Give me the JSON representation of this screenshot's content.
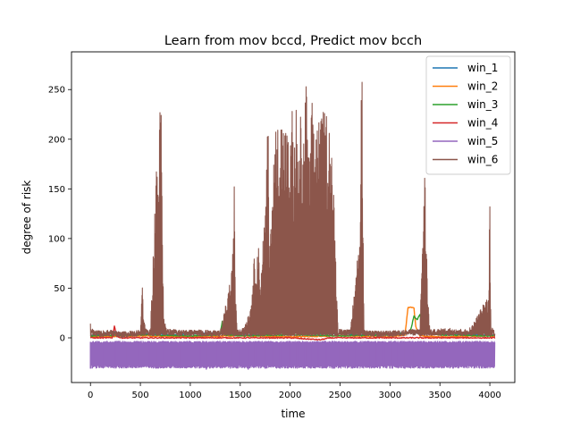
{
  "chart_data": {
    "type": "line",
    "title": "Learn from mov bccd, Predict mov bcch",
    "xlabel": "time",
    "ylabel": "degree of risk",
    "xlim": [
      -190,
      4250
    ],
    "ylim": [
      -45,
      288
    ],
    "xticks": [
      0,
      500,
      1000,
      1500,
      2000,
      2500,
      3000,
      3500,
      4000
    ],
    "yticks": [
      0,
      50,
      100,
      150,
      200,
      250
    ],
    "grid": false,
    "legend_position": "top-right",
    "series": [
      {
        "name": "win_1",
        "color": "#1f77b4",
        "x": [
          0,
          250,
          300,
          500,
          800,
          1000,
          1200,
          1400,
          1600,
          2000,
          2500,
          2700,
          3000,
          3200,
          3400,
          3600,
          3800,
          4000,
          4050
        ],
        "y": [
          2,
          6,
          3,
          4,
          3,
          4,
          5,
          4,
          3,
          5,
          4,
          3,
          4,
          5,
          4,
          3,
          4,
          2,
          3
        ]
      },
      {
        "name": "win_2",
        "color": "#ff7f0e",
        "x": [
          0,
          500,
          1000,
          1500,
          2000,
          2500,
          3000,
          3150,
          3180,
          3200,
          3240,
          3260,
          3300,
          3500,
          4000,
          4050
        ],
        "y": [
          1,
          2,
          1,
          2,
          1,
          2,
          1,
          3,
          30,
          31,
          30,
          10,
          2,
          1,
          2,
          1
        ]
      },
      {
        "name": "win_3",
        "color": "#2ca02c",
        "x": [
          0,
          500,
          1000,
          1300,
          1320,
          1340,
          1500,
          2000,
          2500,
          3000,
          3200,
          3240,
          3270,
          3300,
          3330,
          3500,
          4000,
          4050
        ],
        "y": [
          2,
          3,
          2,
          3,
          17,
          3,
          2,
          3,
          2,
          3,
          5,
          22,
          18,
          24,
          6,
          3,
          2,
          3
        ]
      },
      {
        "name": "win_4",
        "color": "#d62728",
        "x": [
          0,
          220,
          240,
          260,
          300,
          500,
          1000,
          1500,
          2000,
          2300,
          2400,
          2500,
          3000,
          3500,
          4000,
          4050
        ],
        "y": [
          0,
          0,
          12,
          2,
          0,
          0,
          0,
          0,
          0,
          -2,
          0,
          0,
          0,
          0,
          0,
          0
        ]
      },
      {
        "name": "win_5",
        "color": "#9467bd",
        "x": [
          0,
          4050
        ],
        "y": [
          -31,
          -3
        ],
        "spikes_x": [
          0,
          130,
          250,
          370,
          480,
          590,
          655,
          725,
          840,
          900,
          1000,
          1100,
          1160,
          1260,
          1330,
          1400,
          1500,
          1580,
          1650,
          1750,
          1825,
          1900,
          2000,
          2070,
          2150,
          2220,
          2280,
          2360,
          2430,
          2500,
          2590,
          2650,
          2730,
          2800,
          2860,
          2940,
          3000,
          3080,
          3150,
          3230,
          3300
        ],
        "spikes_y": [
          -31,
          -30,
          -29,
          -30,
          -30,
          -28,
          -31,
          -30,
          -29,
          -28,
          -30,
          -29,
          -32,
          -30,
          -28,
          -31,
          -30,
          -32,
          -29,
          -31,
          -29,
          -31,
          -29,
          -31,
          -30,
          -29,
          -30,
          -30,
          -31,
          -30,
          -30,
          -30,
          -30,
          -30,
          -30,
          -30,
          -31,
          -30,
          -31,
          -30,
          -31
        ]
      },
      {
        "name": "win_6",
        "color": "#8c564b",
        "x": [
          0,
          10,
          30,
          100,
          200,
          300,
          400,
          500,
          520,
          530,
          560,
          600,
          640,
          660,
          680,
          700,
          710,
          730,
          760,
          900,
          1100,
          1300,
          1420,
          1440,
          1450,
          1470,
          1520,
          1600,
          1640,
          1680,
          1700,
          1760,
          1780,
          1790,
          1800,
          1850,
          1900,
          1950,
          2000,
          2020,
          2040,
          2060,
          2080,
          2100,
          2130,
          2160,
          2190,
          2200,
          2220,
          2240,
          2260,
          2300,
          2340,
          2380,
          2420,
          2460,
          2480,
          2600,
          2700,
          2710,
          2720,
          2740,
          2800,
          3000,
          3300,
          3320,
          3340,
          3350,
          3360,
          3380,
          3400,
          3600,
          3800,
          3990,
          4000,
          4010,
          4050
        ],
        "y": [
          18,
          8,
          5,
          4,
          5,
          3,
          4,
          5,
          65,
          20,
          6,
          5,
          120,
          185,
          190,
          245,
          247,
          30,
          6,
          5,
          5,
          4,
          70,
          155,
          60,
          5,
          6,
          30,
          80,
          100,
          60,
          150,
          248,
          60,
          120,
          210,
          230,
          220,
          195,
          235,
          185,
          250,
          170,
          230,
          190,
          262,
          180,
          200,
          240,
          210,
          235,
          220,
          230,
          230,
          200,
          70,
          6,
          5,
          110,
          273,
          265,
          5,
          4,
          4,
          6,
          90,
          165,
          170,
          120,
          40,
          8,
          10,
          8,
          45,
          160,
          10,
          4
        ]
      }
    ]
  }
}
